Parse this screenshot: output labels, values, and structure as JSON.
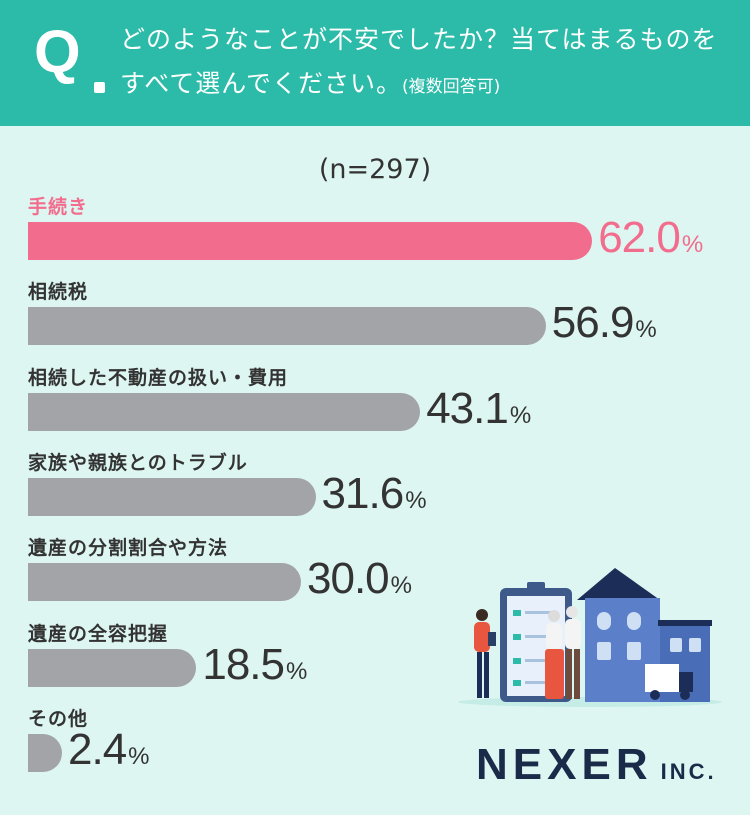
{
  "question": {
    "mark": "Q",
    "text": "どのようなことが不安でしたか？当てはまるものをすべて選んでください。",
    "note": "(複数回答可)"
  },
  "sample": "(n=297)",
  "chart_data": {
    "type": "bar",
    "orientation": "horizontal",
    "categories": [
      "手続き",
      "相続税",
      "相続した不動産の扱い・費用",
      "家族や親族とのトラブル",
      "遺産の分割割合や方法",
      "遺産の全容把握",
      "その他"
    ],
    "values": [
      62.0,
      56.9,
      43.1,
      31.6,
      30.0,
      18.5,
      2.4
    ],
    "value_labels": [
      "62.0",
      "56.9",
      "43.1",
      "31.6",
      "30.0",
      "18.5",
      "2.4"
    ],
    "unit": "%",
    "highlight_index": 0,
    "colors": {
      "highlight": "#f26d8d",
      "default": "#a3a4a7",
      "highlight_text": "#f26d8d",
      "text": "#333333"
    }
  },
  "brand": {
    "name": "NEXER",
    "suffix": "INC."
  }
}
